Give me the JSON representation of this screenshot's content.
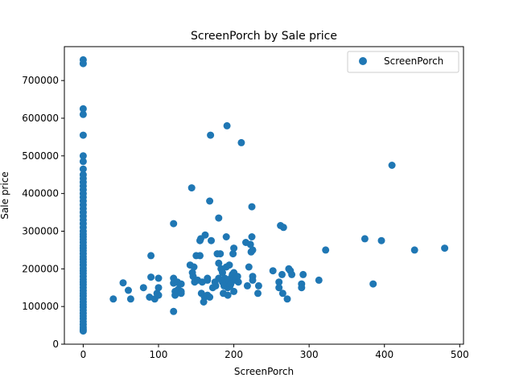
{
  "chart_data": {
    "type": "scatter",
    "title": "ScreenPorch by Sale price",
    "xlabel": "ScreenPorch",
    "ylabel": "Sale price",
    "xlim": [
      -25,
      505
    ],
    "ylim": [
      0,
      790000
    ],
    "xticks": [
      0,
      100,
      200,
      300,
      400,
      500
    ],
    "yticks": [
      0,
      100000,
      200000,
      300000,
      400000,
      500000,
      600000,
      700000
    ],
    "xtick_labels": [
      "0",
      "100",
      "200",
      "300",
      "400",
      "500"
    ],
    "ytick_labels": [
      "0",
      "100000",
      "200000",
      "300000",
      "400000",
      "500000",
      "600000",
      "700000"
    ],
    "legend_position": "top-right",
    "grid": false,
    "series": [
      {
        "name": "ScreenPorch",
        "color": "#1f77b4",
        "points": [
          [
            0,
            35000
          ],
          [
            0,
            40000
          ],
          [
            0,
            45000
          ],
          [
            0,
            52000
          ],
          [
            0,
            60000
          ],
          [
            0,
            68000
          ],
          [
            0,
            75000
          ],
          [
            0,
            82000
          ],
          [
            0,
            90000
          ],
          [
            0,
            98000
          ],
          [
            0,
            105000
          ],
          [
            0,
            112000
          ],
          [
            0,
            120000
          ],
          [
            0,
            128000
          ],
          [
            0,
            135000
          ],
          [
            0,
            142000
          ],
          [
            0,
            150000
          ],
          [
            0,
            158000
          ],
          [
            0,
            165000
          ],
          [
            0,
            172000
          ],
          [
            0,
            180000
          ],
          [
            0,
            188000
          ],
          [
            0,
            195000
          ],
          [
            0,
            202000
          ],
          [
            0,
            210000
          ],
          [
            0,
            218000
          ],
          [
            0,
            225000
          ],
          [
            0,
            232000
          ],
          [
            0,
            240000
          ],
          [
            0,
            248000
          ],
          [
            0,
            255000
          ],
          [
            0,
            262000
          ],
          [
            0,
            270000
          ],
          [
            0,
            278000
          ],
          [
            0,
            285000
          ],
          [
            0,
            292000
          ],
          [
            0,
            300000
          ],
          [
            0,
            310000
          ],
          [
            0,
            320000
          ],
          [
            0,
            330000
          ],
          [
            0,
            340000
          ],
          [
            0,
            350000
          ],
          [
            0,
            360000
          ],
          [
            0,
            370000
          ],
          [
            0,
            380000
          ],
          [
            0,
            390000
          ],
          [
            0,
            400000
          ],
          [
            0,
            410000
          ],
          [
            0,
            420000
          ],
          [
            0,
            430000
          ],
          [
            0,
            440000
          ],
          [
            0,
            450000
          ],
          [
            0,
            465000
          ],
          [
            0,
            485000
          ],
          [
            0,
            500000
          ],
          [
            0,
            555000
          ],
          [
            0,
            610000
          ],
          [
            0,
            625000
          ],
          [
            0,
            745000
          ],
          [
            0,
            755000
          ],
          [
            40,
            120000
          ],
          [
            53,
            163000
          ],
          [
            60,
            143000
          ],
          [
            63,
            120000
          ],
          [
            80,
            150000
          ],
          [
            88,
            125000
          ],
          [
            90,
            235000
          ],
          [
            90,
            178000
          ],
          [
            95,
            120000
          ],
          [
            98,
            135000
          ],
          [
            100,
            150000
          ],
          [
            100,
            175000
          ],
          [
            100,
            130000
          ],
          [
            120,
            320000
          ],
          [
            120,
            87000
          ],
          [
            120,
            175000
          ],
          [
            120,
            162000
          ],
          [
            122,
            140000
          ],
          [
            122,
            130000
          ],
          [
            125,
            165000
          ],
          [
            126,
            145000
          ],
          [
            128,
            160000
          ],
          [
            130,
            140000
          ],
          [
            130,
            160000
          ],
          [
            130,
            135000
          ],
          [
            142,
            210000
          ],
          [
            144,
            415000
          ],
          [
            145,
            190000
          ],
          [
            146,
            180000
          ],
          [
            147,
            205000
          ],
          [
            148,
            165000
          ],
          [
            150,
            235000
          ],
          [
            152,
            170000
          ],
          [
            155,
            275000
          ],
          [
            155,
            235000
          ],
          [
            156,
            280000
          ],
          [
            157,
            135000
          ],
          [
            158,
            165000
          ],
          [
            160,
            112000
          ],
          [
            161,
            125000
          ],
          [
            162,
            290000
          ],
          [
            165,
            130000
          ],
          [
            165,
            170000
          ],
          [
            165,
            175000
          ],
          [
            168,
            380000
          ],
          [
            168,
            125000
          ],
          [
            169,
            555000
          ],
          [
            170,
            275000
          ],
          [
            172,
            150000
          ],
          [
            175,
            165000
          ],
          [
            176,
            155000
          ],
          [
            178,
            240000
          ],
          [
            180,
            335000
          ],
          [
            180,
            175000
          ],
          [
            180,
            215000
          ],
          [
            182,
            240000
          ],
          [
            183,
            200000
          ],
          [
            185,
            190000
          ],
          [
            185,
            165000
          ],
          [
            186,
            135000
          ],
          [
            187,
            155000
          ],
          [
            188,
            175000
          ],
          [
            190,
            165000
          ],
          [
            190,
            285000
          ],
          [
            190,
            205000
          ],
          [
            191,
            580000
          ],
          [
            192,
            150000
          ],
          [
            192,
            130000
          ],
          [
            193,
            170000
          ],
          [
            194,
            210000
          ],
          [
            195,
            155000
          ],
          [
            196,
            175000
          ],
          [
            196,
            160000
          ],
          [
            198,
            185000
          ],
          [
            199,
            240000
          ],
          [
            200,
            255000
          ],
          [
            200,
            140000
          ],
          [
            200,
            190000
          ],
          [
            202,
            170000
          ],
          [
            205,
            180000
          ],
          [
            206,
            165000
          ],
          [
            210,
            535000
          ],
          [
            216,
            270000
          ],
          [
            218,
            155000
          ],
          [
            220,
            205000
          ],
          [
            222,
            265000
          ],
          [
            223,
            245000
          ],
          [
            224,
            365000
          ],
          [
            224,
            285000
          ],
          [
            225,
            180000
          ],
          [
            225,
            170000
          ],
          [
            225,
            250000
          ],
          [
            232,
            135000
          ],
          [
            233,
            155000
          ],
          [
            252,
            195000
          ],
          [
            260,
            165000
          ],
          [
            260,
            150000
          ],
          [
            262,
            315000
          ],
          [
            264,
            185000
          ],
          [
            265,
            135000
          ],
          [
            266,
            310000
          ],
          [
            271,
            120000
          ],
          [
            273,
            200000
          ],
          [
            275,
            195000
          ],
          [
            277,
            185000
          ],
          [
            290,
            160000
          ],
          [
            290,
            150000
          ],
          [
            292,
            185000
          ],
          [
            313,
            170000
          ],
          [
            322,
            250000
          ],
          [
            374,
            280000
          ],
          [
            385,
            160000
          ],
          [
            396,
            275000
          ],
          [
            410,
            475000
          ],
          [
            440,
            250000
          ],
          [
            480,
            255000
          ]
        ]
      }
    ]
  }
}
